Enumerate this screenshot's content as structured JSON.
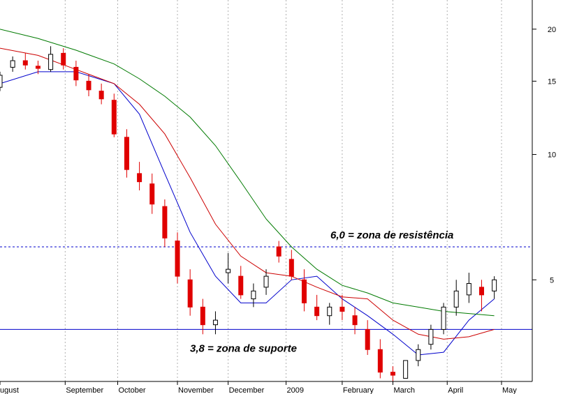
{
  "chart_data": {
    "type": "line",
    "title": "",
    "xlabel": "",
    "ylabel": "",
    "y_scale": "log",
    "ylim": [
      2.85,
      23.5
    ],
    "grid": "vertical-dotted",
    "x_labels": [
      "ugust",
      "September",
      "October",
      "November",
      "December",
      "2009",
      "February",
      "March",
      "April",
      "May"
    ],
    "x_label_dates": [
      "2008-07-28",
      "2008-09-02",
      "2008-10-01",
      "2008-11-03",
      "2008-12-01",
      "2009-01-02",
      "2009-02-02",
      "2009-03-02",
      "2009-04-01",
      "2009-05-01"
    ],
    "y_ticks": [
      5,
      10,
      15,
      20
    ],
    "annotations": [
      {
        "text": "6,0 = zona de resistência",
        "value": 6.0,
        "line": "dashed"
      },
      {
        "text": "3,8 = zona de suporte",
        "value": 3.8,
        "line": "solid"
      }
    ],
    "candles": {
      "dates": [
        "2008-07-28",
        "2008-08-04",
        "2008-08-11",
        "2008-08-18",
        "2008-08-25",
        "2008-09-01",
        "2008-09-08",
        "2008-09-15",
        "2008-09-22",
        "2008-09-29",
        "2008-10-06",
        "2008-10-13",
        "2008-10-20",
        "2008-10-27",
        "2008-11-03",
        "2008-11-10",
        "2008-11-17",
        "2008-11-24",
        "2008-12-01",
        "2008-12-08",
        "2008-12-15",
        "2008-12-22",
        "2008-12-29",
        "2009-01-05",
        "2009-01-12",
        "2009-01-19",
        "2009-01-26",
        "2009-02-02",
        "2009-02-09",
        "2009-02-16",
        "2009-02-23",
        "2009-03-02",
        "2009-03-09",
        "2009-03-16",
        "2009-03-23",
        "2009-03-30",
        "2009-04-06",
        "2009-04-13",
        "2009-04-20",
        "2009-04-27"
      ],
      "open": [
        14.5,
        16.2,
        16.8,
        16.3,
        16.0,
        17.5,
        16.2,
        15.0,
        14.2,
        13.5,
        11.0,
        9.0,
        8.5,
        7.5,
        6.2,
        5.0,
        4.3,
        3.9,
        5.2,
        5.1,
        4.5,
        4.8,
        6.0,
        5.6,
        5.0,
        4.3,
        4.1,
        4.3,
        4.1,
        3.8,
        3.4,
        3.0,
        2.9,
        3.2,
        3.5,
        3.8,
        4.3,
        4.6,
        4.8,
        4.7
      ],
      "high": [
        15.8,
        17.2,
        17.5,
        16.8,
        18.2,
        18.0,
        16.8,
        15.6,
        14.8,
        14.0,
        11.5,
        9.6,
        9.0,
        7.8,
        6.5,
        5.3,
        4.5,
        4.2,
        5.8,
        5.4,
        4.9,
        5.3,
        6.2,
        5.9,
        5.3,
        4.6,
        4.4,
        4.6,
        4.3,
        4.0,
        3.6,
        3.1,
        3.2,
        3.5,
        3.9,
        4.4,
        5.0,
        5.2,
        5.0,
        5.1
      ],
      "low": [
        14.2,
        15.8,
        16.0,
        15.6,
        15.8,
        16.0,
        14.6,
        13.8,
        13.2,
        11.0,
        8.8,
        8.2,
        7.2,
        6.0,
        4.9,
        4.1,
        3.7,
        3.7,
        4.9,
        4.5,
        4.3,
        4.6,
        5.5,
        5.0,
        4.2,
        4.0,
        3.9,
        4.0,
        3.7,
        3.3,
        2.9,
        2.85,
        2.9,
        3.1,
        3.4,
        3.7,
        4.1,
        4.4,
        4.2,
        4.5
      ],
      "close": [
        15.5,
        16.8,
        16.4,
        16.1,
        17.4,
        16.4,
        15.1,
        14.3,
        13.6,
        11.2,
        9.2,
        8.6,
        7.6,
        6.3,
        5.1,
        4.3,
        3.9,
        4.0,
        5.3,
        4.6,
        4.7,
        5.1,
        5.7,
        5.1,
        4.4,
        4.1,
        4.3,
        4.2,
        3.9,
        3.4,
        3.0,
        2.95,
        3.2,
        3.4,
        3.8,
        4.3,
        4.7,
        4.9,
        4.6,
        5.0
      ]
    },
    "series": [
      {
        "color": "#0000cc",
        "x": [
          "2008-07-28",
          "2008-08-18",
          "2008-09-08",
          "2008-09-29",
          "2008-10-13",
          "2008-10-27",
          "2008-11-10",
          "2008-11-24",
          "2008-12-08",
          "2008-12-22",
          "2009-01-05",
          "2009-01-19",
          "2009-02-02",
          "2009-02-16",
          "2009-03-02",
          "2009-03-16",
          "2009-03-30",
          "2009-04-13",
          "2009-04-27"
        ],
        "values": [
          14.8,
          15.8,
          15.8,
          14.8,
          12.5,
          9.0,
          6.5,
          5.1,
          4.4,
          4.4,
          5.0,
          5.1,
          4.5,
          4.1,
          3.7,
          3.3,
          3.35,
          4.0,
          4.5
        ]
      },
      {
        "color": "#cc0000",
        "x": [
          "2008-07-28",
          "2008-08-18",
          "2008-09-08",
          "2008-09-29",
          "2008-10-13",
          "2008-10-27",
          "2008-11-10",
          "2008-11-24",
          "2008-12-08",
          "2008-12-22",
          "2009-01-05",
          "2009-01-19",
          "2009-02-02",
          "2009-02-16",
          "2009-03-02",
          "2009-03-16",
          "2009-03-30",
          "2009-04-13",
          "2009-04-27"
        ],
        "values": [
          18.0,
          17.3,
          16.0,
          14.8,
          13.2,
          11.2,
          8.8,
          6.8,
          5.7,
          5.2,
          5.1,
          4.8,
          4.55,
          4.5,
          4.0,
          3.7,
          3.6,
          3.65,
          3.8
        ]
      },
      {
        "color": "#007a00",
        "x": [
          "2008-07-28",
          "2008-08-18",
          "2008-09-08",
          "2008-09-29",
          "2008-10-13",
          "2008-10-27",
          "2008-11-10",
          "2008-11-24",
          "2008-12-08",
          "2008-12-22",
          "2009-01-05",
          "2009-01-19",
          "2009-02-02",
          "2009-02-16",
          "2009-03-02",
          "2009-03-16",
          "2009-03-30",
          "2009-04-13",
          "2009-04-27"
        ],
        "values": [
          20.0,
          19.0,
          17.8,
          16.5,
          15.2,
          13.8,
          12.3,
          10.5,
          8.6,
          7.0,
          6.0,
          5.3,
          4.85,
          4.65,
          4.4,
          4.3,
          4.2,
          4.15,
          4.1
        ]
      }
    ]
  }
}
